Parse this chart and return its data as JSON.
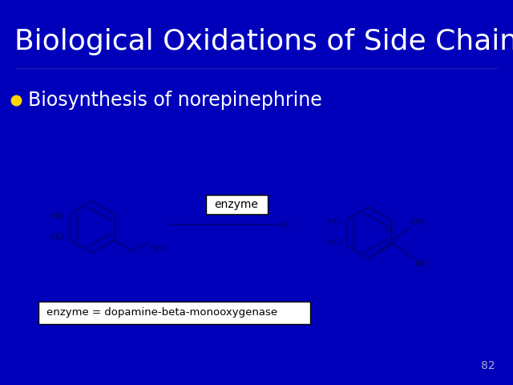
{
  "background_color": "#0000BB",
  "title": "Biological Oxidations of Side Chains",
  "title_color": "#FFFFFF",
  "title_fontsize": 26,
  "bullet_color": "#FFD700",
  "bullet_text": "Biosynthesis of norepinephrine",
  "bullet_fontsize": 17,
  "bullet_text_color": "#FFFFFF",
  "mol_line_color": "#00008B",
  "mol_text_color": "#000066",
  "enzyme_box_text": "enzyme",
  "enzyme_label": "enzyme = dopamine-beta-monooxygenase",
  "page_number": "82",
  "page_number_color": "#AAAACC",
  "arrow_color": "#000099",
  "background_hex": "#0000BB"
}
